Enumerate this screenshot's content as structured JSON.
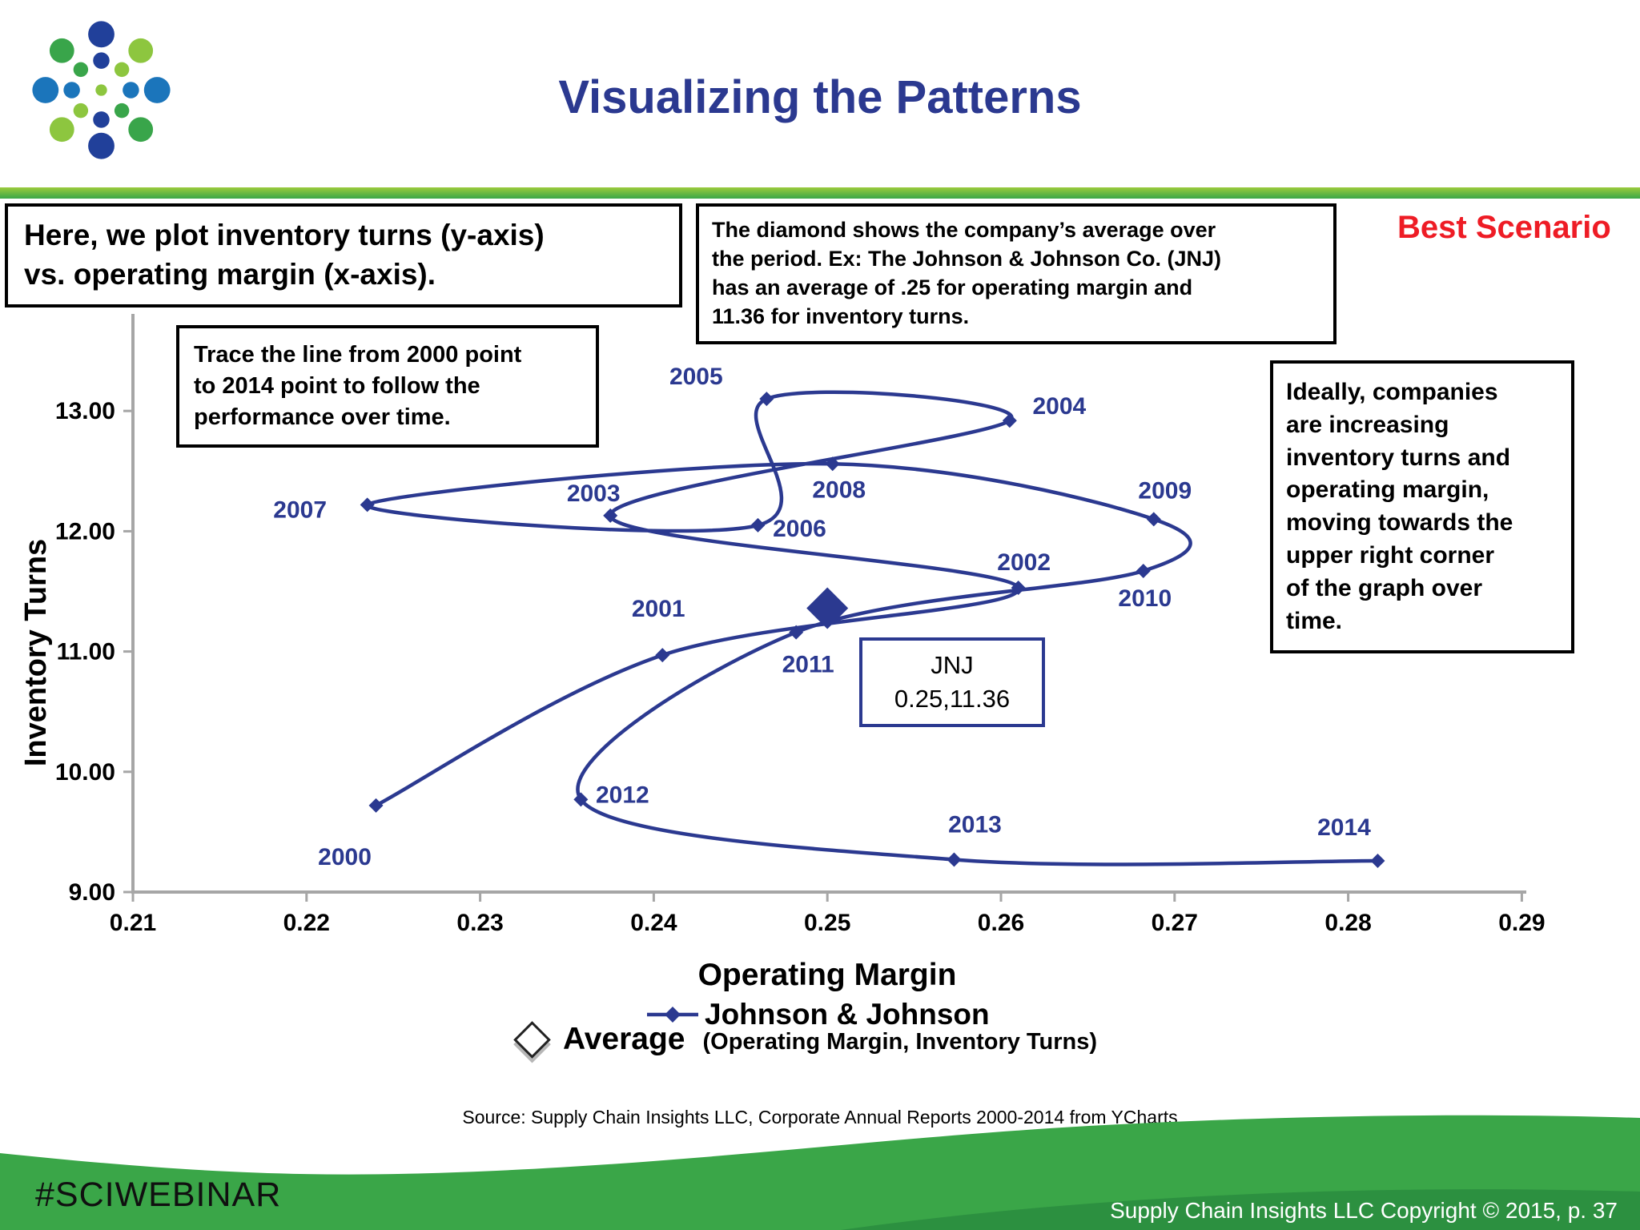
{
  "header": {
    "title": "Visualizing the Patterns"
  },
  "annotations": {
    "plot_note": "Here, we plot inventory turns (y-axis)\nvs. operating margin (x-axis).",
    "diamond_note": "The diamond shows  the company’s average over\nthe  period. Ex: The Johnson & Johnson Co. (JNJ)\nhas an average of  .25 for operating margin and\n11.36 for inventory turns.",
    "best_scenario": "Best Scenario",
    "trace_note": "Trace the line from 2000 point\nto 2014 point to follow the\nperformance over time.",
    "ideal_note": "Ideally, companies\nare increasing\ninventory turns and\noperating margin,\nmoving towards the\nupper right corner\nof the graph over\ntime.",
    "jnj_callout": "JNJ\n0.25,11.36"
  },
  "chart_data": {
    "type": "scatter",
    "smooth_line": true,
    "title": "",
    "xlabel": "Operating Margin",
    "ylabel": "Inventory Turns",
    "xlim": [
      0.21,
      0.29
    ],
    "ylim": [
      9.0,
      13.0
    ],
    "x_ticks": [
      "0.21",
      "0.22",
      "0.23",
      "0.24",
      "0.25",
      "0.26",
      "0.27",
      "0.28",
      "0.29"
    ],
    "y_ticks": [
      "9.00",
      "10.00",
      "11.00",
      "12.00",
      "13.00"
    ],
    "grid": false,
    "legend_position": "bottom",
    "line_color": "#2b3990",
    "axis_color": "#a6a6a6",
    "series": [
      {
        "name": "Johnson & Johnson",
        "points": [
          {
            "year": "2000",
            "x": 0.224,
            "y": 9.72,
            "dx": -39,
            "dy": 64
          },
          {
            "year": "2001",
            "x": 0.2405,
            "y": 10.97,
            "dx": -5,
            "dy": -58
          },
          {
            "year": "2002",
            "x": 0.261,
            "y": 11.53,
            "dx": 7,
            "dy": -32
          },
          {
            "year": "2003",
            "x": 0.2375,
            "y": 12.13,
            "dx": -21,
            "dy": -28
          },
          {
            "year": "2004",
            "x": 0.2605,
            "y": 12.92,
            "dx": 62,
            "dy": -18
          },
          {
            "year": "2005",
            "x": 0.2465,
            "y": 13.1,
            "dx": -88,
            "dy": -28
          },
          {
            "year": "2006",
            "x": 0.246,
            "y": 12.05,
            "dx": 52,
            "dy": 4
          },
          {
            "year": "2007",
            "x": 0.2235,
            "y": 12.22,
            "dx": -84,
            "dy": 6
          },
          {
            "year": "2008",
            "x": 0.2503,
            "y": 12.56,
            "dx": 8,
            "dy": 32
          },
          {
            "year": "2009",
            "x": 0.2688,
            "y": 12.1,
            "dx": 14,
            "dy": -36
          },
          {
            "year": "2010",
            "x": 0.2682,
            "y": 11.67,
            "dx": 2,
            "dy": 34
          },
          {
            "year": "2011",
            "x": 0.2482,
            "y": 11.16,
            "dx": 15,
            "dy": 40
          },
          {
            "year": "2012",
            "x": 0.2358,
            "y": 9.77,
            "dx": 52,
            "dy": -6
          },
          {
            "year": "2013",
            "x": 0.2573,
            "y": 9.27,
            "dx": 26,
            "dy": -44
          },
          {
            "year": "2014",
            "x": 0.2817,
            "y": 9.26,
            "dx": -42,
            "dy": -42
          }
        ]
      }
    ],
    "average": {
      "label": "JNJ",
      "x": 0.25,
      "y": 11.36
    }
  },
  "legend": {
    "series_label": "Johnson & Johnson",
    "average_label": "Average",
    "average_sublabel": "(Operating Margin, Inventory Turns)"
  },
  "source": "Source:  Supply Chain Insights LLC, Corporate Annual Reports 2000-2014 from YCharts",
  "footer": {
    "hashtag": "#SCIWEBINAR",
    "copyright": "Supply Chain Insights LLC Copyright © 2015, p. 37"
  }
}
